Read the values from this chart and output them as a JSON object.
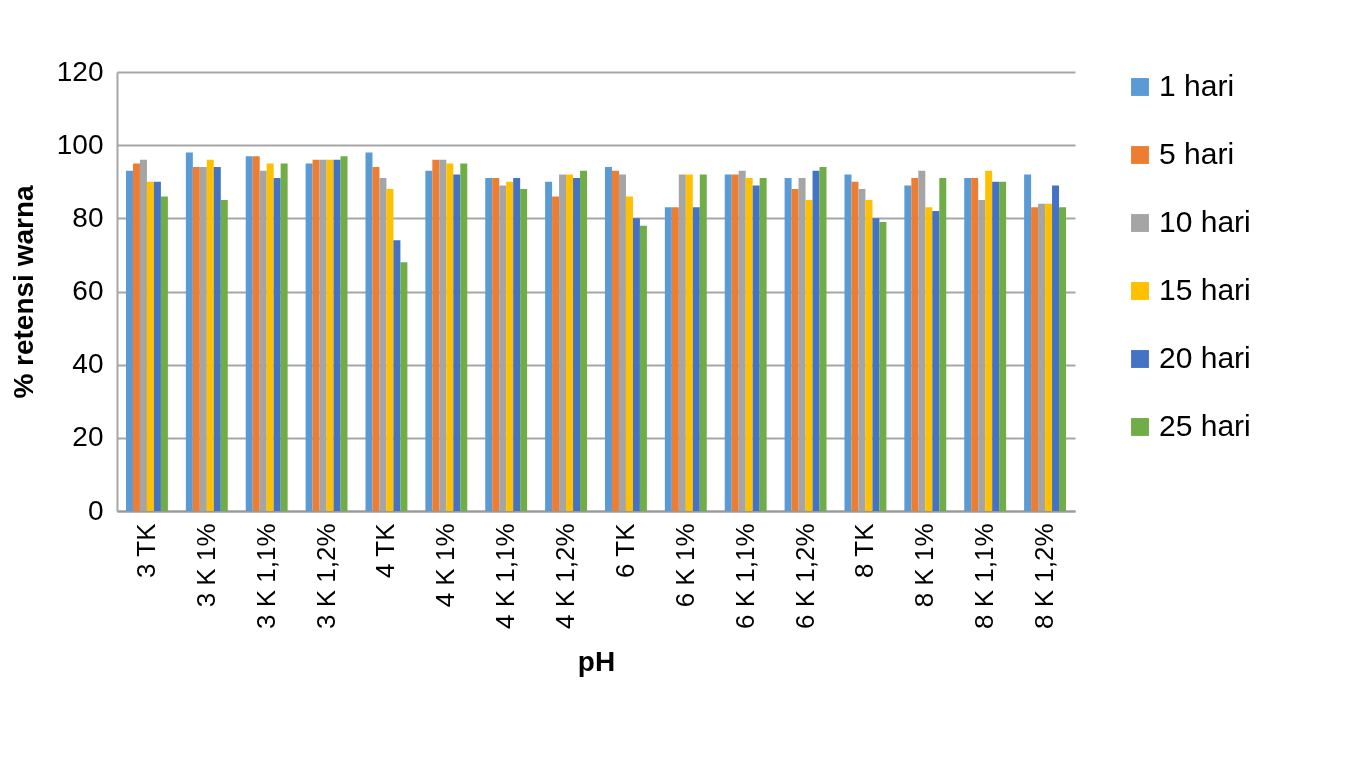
{
  "chart_data": {
    "type": "bar",
    "xlabel": "pH",
    "ylabel": "% retensi warna",
    "categories": [
      "3 TK",
      "3 K 1%",
      "3 K 1,1%",
      "3 K 1,2%",
      "4 TK",
      "4 K 1%",
      "4 K 1,1%",
      "4 K 1,2%",
      "6 TK",
      "6 K 1%",
      "6 K 1,1%",
      "6 K 1,2%",
      "8 TK",
      "8 K 1%",
      "8 K 1,1%",
      "8 K 1,2%"
    ],
    "series": [
      {
        "name": "1 hari",
        "color": "#5b9bd5",
        "values": [
          93,
          98,
          97,
          95,
          98,
          93,
          91,
          90,
          94,
          83,
          92,
          91,
          92,
          89,
          91,
          92
        ]
      },
      {
        "name": "5 hari",
        "color": "#ed7d31",
        "values": [
          95,
          94,
          97,
          96,
          94,
          96,
          91,
          86,
          93,
          83,
          92,
          88,
          90,
          91,
          91,
          83
        ]
      },
      {
        "name": "10 hari",
        "color": "#a5a5a5",
        "values": [
          96,
          94,
          93,
          96,
          91,
          96,
          89,
          92,
          92,
          92,
          93,
          91,
          88,
          93,
          85,
          84
        ]
      },
      {
        "name": "15 hari",
        "color": "#ffc000",
        "values": [
          90,
          96,
          95,
          96,
          88,
          95,
          90,
          92,
          86,
          92,
          91,
          85,
          85,
          83,
          93,
          84
        ]
      },
      {
        "name": "20 hari",
        "color": "#4472c4",
        "values": [
          90,
          94,
          91,
          96,
          74,
          92,
          91,
          91,
          80,
          83,
          89,
          93,
          80,
          82,
          90,
          89
        ]
      },
      {
        "name": "25 hari",
        "color": "#70ad47",
        "values": [
          86,
          85,
          95,
          97,
          68,
          95,
          88,
          93,
          78,
          92,
          91,
          94,
          79,
          91,
          90,
          83
        ]
      }
    ],
    "ylim": [
      0,
      120
    ],
    "yticks": [
      0,
      20,
      40,
      60,
      80,
      100,
      120
    ],
    "grid": "y",
    "legend": "right"
  }
}
